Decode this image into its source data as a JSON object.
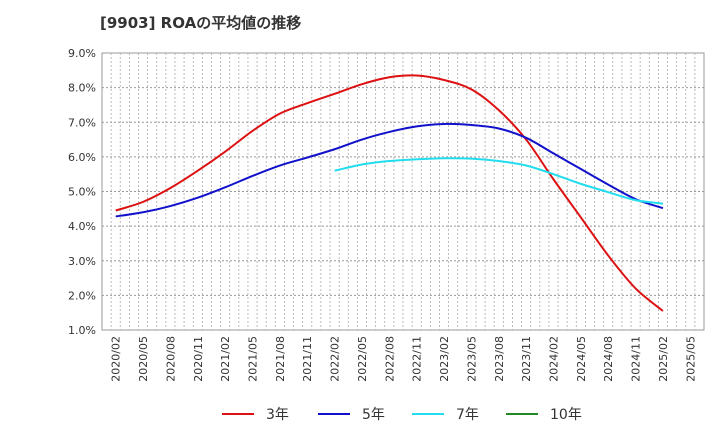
{
  "chart_data": {
    "type": "line",
    "title": "[9903]  ROAの平均値の推移",
    "xlabel": "",
    "ylabel": "",
    "x_ticks": [
      "2020/02",
      "2020/05",
      "2020/08",
      "2020/11",
      "2021/02",
      "2021/05",
      "2021/08",
      "2021/11",
      "2022/02",
      "2022/05",
      "2022/08",
      "2022/11",
      "2023/02",
      "2023/05",
      "2023/08",
      "2023/11",
      "2024/02",
      "2024/05",
      "2024/08",
      "2024/11",
      "2025/02",
      "2025/05"
    ],
    "y_ticks": [
      "1.0%",
      "2.0%",
      "3.0%",
      "4.0%",
      "5.0%",
      "6.0%",
      "7.0%",
      "8.0%",
      "9.0%"
    ],
    "ylim": [
      1.0,
      9.0
    ],
    "grid": true,
    "legend_position": "bottom",
    "series": [
      {
        "name": "3年",
        "color": "#dd1111",
        "points": [
          [
            "2020/02",
            4.45
          ],
          [
            "2020/05",
            4.7
          ],
          [
            "2020/08",
            5.1
          ],
          [
            "2020/11",
            5.6
          ],
          [
            "2021/02",
            6.15
          ],
          [
            "2021/05",
            6.75
          ],
          [
            "2021/08",
            7.25
          ],
          [
            "2021/11",
            7.55
          ],
          [
            "2022/02",
            7.82
          ],
          [
            "2022/05",
            8.1
          ],
          [
            "2022/08",
            8.3
          ],
          [
            "2022/11",
            8.35
          ],
          [
            "2023/02",
            8.22
          ],
          [
            "2023/05",
            7.95
          ],
          [
            "2023/08",
            7.35
          ],
          [
            "2023/11",
            6.5
          ],
          [
            "2024/02",
            5.35
          ],
          [
            "2024/05",
            4.25
          ],
          [
            "2024/08",
            3.15
          ],
          [
            "2024/11",
            2.2
          ],
          [
            "2025/02",
            1.55
          ]
        ]
      },
      {
        "name": "5年",
        "color": "#1111cc",
        "points": [
          [
            "2020/02",
            4.28
          ],
          [
            "2020/05",
            4.4
          ],
          [
            "2020/08",
            4.58
          ],
          [
            "2020/11",
            4.82
          ],
          [
            "2021/02",
            5.12
          ],
          [
            "2021/05",
            5.45
          ],
          [
            "2021/08",
            5.75
          ],
          [
            "2021/11",
            5.98
          ],
          [
            "2022/02",
            6.22
          ],
          [
            "2022/05",
            6.5
          ],
          [
            "2022/08",
            6.72
          ],
          [
            "2022/11",
            6.88
          ],
          [
            "2023/02",
            6.95
          ],
          [
            "2023/05",
            6.92
          ],
          [
            "2023/08",
            6.82
          ],
          [
            "2023/11",
            6.55
          ],
          [
            "2024/02",
            6.1
          ],
          [
            "2024/05",
            5.65
          ],
          [
            "2024/08",
            5.2
          ],
          [
            "2024/11",
            4.78
          ],
          [
            "2025/02",
            4.52
          ]
        ]
      },
      {
        "name": "7年",
        "color": "#22ddee",
        "points": [
          [
            "2022/02",
            5.6
          ],
          [
            "2022/05",
            5.78
          ],
          [
            "2022/08",
            5.88
          ],
          [
            "2022/11",
            5.93
          ],
          [
            "2023/02",
            5.96
          ],
          [
            "2023/05",
            5.95
          ],
          [
            "2023/08",
            5.88
          ],
          [
            "2023/11",
            5.75
          ],
          [
            "2024/02",
            5.5
          ],
          [
            "2024/05",
            5.22
          ],
          [
            "2024/08",
            4.98
          ],
          [
            "2024/11",
            4.75
          ],
          [
            "2025/02",
            4.65
          ]
        ]
      },
      {
        "name": "10年",
        "color": "#228822",
        "points": []
      }
    ]
  }
}
